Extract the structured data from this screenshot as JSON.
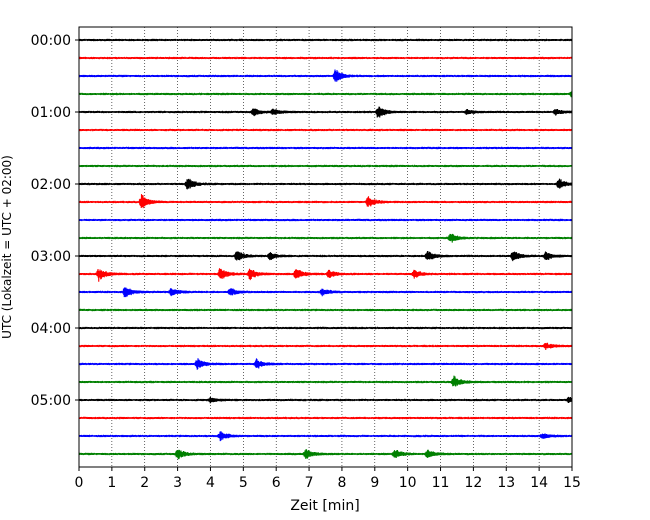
{
  "chart_data": {
    "type": "line",
    "title": "",
    "xlabel": "Zeit  [min]",
    "ylabel": "UTC (Lokalzeit = UTC + 02:00)",
    "xlim": [
      0,
      15
    ],
    "x_ticks": [
      "0",
      "1",
      "2",
      "3",
      "4",
      "5",
      "6",
      "7",
      "8",
      "9",
      "10",
      "11",
      "12",
      "13",
      "14",
      "15"
    ],
    "y_tick_labels": [
      "00:00",
      "01:00",
      "02:00",
      "03:00",
      "04:00",
      "05:00"
    ],
    "grid": "vertical dotted at each minute",
    "trace_interval_minutes": 15,
    "trace_colors": [
      "#000000",
      "#ff0000",
      "#0000ff",
      "#008000"
    ],
    "trace_count": 24,
    "bursts": [
      {
        "trace": 2,
        "t": 7.8,
        "amp": 1.8
      },
      {
        "trace": 3,
        "t": 15.0,
        "amp": 1.2
      },
      {
        "trace": 4,
        "t": 5.3,
        "amp": 0.9
      },
      {
        "trace": 4,
        "t": 5.9,
        "amp": 0.7
      },
      {
        "trace": 4,
        "t": 9.1,
        "amp": 1.6
      },
      {
        "trace": 4,
        "t": 11.8,
        "amp": 0.6
      },
      {
        "trace": 4,
        "t": 14.5,
        "amp": 0.8
      },
      {
        "trace": 8,
        "t": 3.3,
        "amp": 1.5
      },
      {
        "trace": 8,
        "t": 14.6,
        "amp": 1.2
      },
      {
        "trace": 9,
        "t": 1.9,
        "amp": 1.8
      },
      {
        "trace": 9,
        "t": 8.8,
        "amp": 1.3
      },
      {
        "trace": 11,
        "t": 11.3,
        "amp": 1.2
      },
      {
        "trace": 12,
        "t": 4.8,
        "amp": 1.4
      },
      {
        "trace": 12,
        "t": 5.8,
        "amp": 0.9
      },
      {
        "trace": 12,
        "t": 10.6,
        "amp": 1.3
      },
      {
        "trace": 12,
        "t": 13.2,
        "amp": 1.5
      },
      {
        "trace": 12,
        "t": 14.2,
        "amp": 1.2
      },
      {
        "trace": 13,
        "t": 0.6,
        "amp": 1.6
      },
      {
        "trace": 13,
        "t": 4.3,
        "amp": 1.6
      },
      {
        "trace": 13,
        "t": 5.2,
        "amp": 1.4
      },
      {
        "trace": 13,
        "t": 6.6,
        "amp": 1.5
      },
      {
        "trace": 13,
        "t": 7.6,
        "amp": 1.0
      },
      {
        "trace": 13,
        "t": 10.2,
        "amp": 1.0
      },
      {
        "trace": 14,
        "t": 1.4,
        "amp": 1.4
      },
      {
        "trace": 14,
        "t": 2.8,
        "amp": 1.0
      },
      {
        "trace": 14,
        "t": 4.6,
        "amp": 1.0
      },
      {
        "trace": 14,
        "t": 7.4,
        "amp": 0.9
      },
      {
        "trace": 17,
        "t": 14.2,
        "amp": 0.8
      },
      {
        "trace": 18,
        "t": 3.6,
        "amp": 1.4
      },
      {
        "trace": 18,
        "t": 5.4,
        "amp": 1.2
      },
      {
        "trace": 19,
        "t": 11.4,
        "amp": 1.4
      },
      {
        "trace": 20,
        "t": 4.0,
        "amp": 0.6
      },
      {
        "trace": 20,
        "t": 14.9,
        "amp": 0.7
      },
      {
        "trace": 22,
        "t": 4.3,
        "amp": 1.2
      },
      {
        "trace": 22,
        "t": 14.1,
        "amp": 0.6
      },
      {
        "trace": 23,
        "t": 3.0,
        "amp": 1.3
      },
      {
        "trace": 23,
        "t": 6.9,
        "amp": 1.2
      },
      {
        "trace": 23,
        "t": 9.6,
        "amp": 1.1
      },
      {
        "trace": 23,
        "t": 10.6,
        "amp": 1.0
      }
    ]
  }
}
